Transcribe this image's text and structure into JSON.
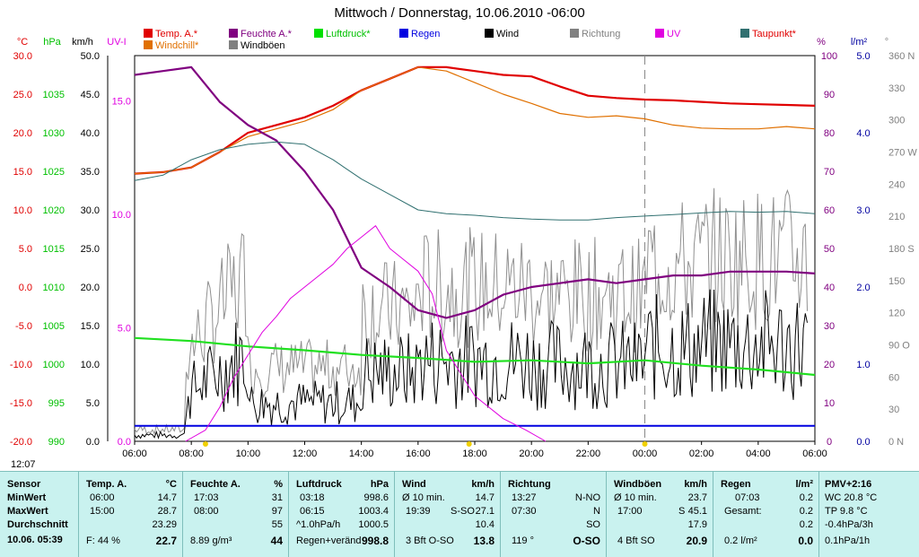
{
  "title": "Mittwoch / Donnerstag, 10.06.2010  -06:00",
  "legend": [
    {
      "label": "Temp. A.*",
      "color": "#e00000"
    },
    {
      "label": "Windchill*",
      "color": "#e07000"
    },
    {
      "label": "Feuchte A.*",
      "color": "#800080"
    },
    {
      "label": "Windböen",
      "color": "#808080"
    },
    {
      "label": "Luftdruck*",
      "color": "#00e000"
    },
    {
      "label": "Regen",
      "color": "#0000e0"
    },
    {
      "label": "Wind",
      "color": "#000000"
    },
    {
      "label": "Richtung",
      "color": "#808080"
    },
    {
      "label": "UV",
      "color": "#e000e0"
    },
    {
      "label": "Taupunkt*",
      "color": "#307070"
    }
  ],
  "axis_units": {
    "temp": "°C",
    "press": "hPa",
    "wind": "km/h",
    "uv": "UV-I",
    "hum": "%",
    "rain": "l/m²",
    "dir": "°"
  },
  "time_label": "12:07",
  "chart_data": {
    "type": "line",
    "x_ticks": [
      "06:00",
      "08:00",
      "10:00",
      "12:00",
      "14:00",
      "16:00",
      "18:00",
      "20:00",
      "22:00",
      "00:00",
      "02:00",
      "04:00",
      "06:00"
    ],
    "axes": {
      "temp_c": {
        "range": [
          -20,
          30
        ],
        "ticks": [
          "30.0",
          "25.0",
          "20.0",
          "15.0",
          "10.0",
          "5.0",
          "0.0",
          "-5.0",
          "-10.0",
          "-15.0",
          "-20.0"
        ]
      },
      "pressure_hpa": {
        "range": [
          990,
          1040
        ],
        "ticks": [
          "1035",
          "1030",
          "1025",
          "1020",
          "1015",
          "1010",
          "1005",
          "1000",
          "995",
          "990"
        ]
      },
      "wind_kmh": {
        "range": [
          0,
          50
        ],
        "ticks": [
          "50.0",
          "45.0",
          "40.0",
          "35.0",
          "30.0",
          "25.0",
          "20.0",
          "15.0",
          "10.0",
          "5.0",
          "0.0"
        ]
      },
      "uv_index": {
        "range": [
          0,
          17
        ],
        "ticks": [
          "15.0",
          "10.0",
          "5.0",
          "0.0"
        ]
      },
      "humidity_pct": {
        "range": [
          0,
          100
        ],
        "ticks": [
          "100",
          "90",
          "80",
          "70",
          "60",
          "50",
          "40",
          "30",
          "20",
          "10",
          "0"
        ]
      },
      "rain_lm2": {
        "range": [
          0,
          5
        ],
        "ticks": [
          "5.0",
          "4.0",
          "3.0",
          "2.0",
          "1.0",
          "0.0"
        ]
      },
      "direction_deg": {
        "range": [
          0,
          360
        ],
        "ticks": [
          "360 N",
          "330",
          "300",
          "270 W",
          "240",
          "210",
          "180 S",
          "150",
          "120",
          "90 O",
          "60",
          "30",
          "0 N"
        ]
      }
    },
    "series": [
      {
        "name": "Temp. A.*",
        "axis": "temp_c",
        "hours": [
          0,
          1,
          2,
          3,
          4,
          5,
          6,
          7,
          8,
          9,
          10,
          11,
          12,
          13,
          14,
          15,
          16,
          17,
          18,
          19,
          20,
          21,
          22,
          23,
          24
        ],
        "values": [
          14.7,
          14.9,
          15.5,
          17.5,
          20,
          21,
          22,
          23.5,
          25.5,
          27,
          28.5,
          28.5,
          28,
          27.5,
          27.3,
          26,
          24.8,
          24.5,
          24.3,
          24.2,
          24,
          23.8,
          23.7,
          23.6,
          23.5
        ]
      },
      {
        "name": "Windchill*",
        "axis": "temp_c",
        "hours": [
          0,
          1,
          2,
          3,
          4,
          5,
          6,
          7,
          8,
          9,
          10,
          11,
          12,
          13,
          14,
          15,
          16,
          17,
          18,
          19,
          20,
          21,
          22,
          23,
          24
        ],
        "values": [
          14.7,
          14.9,
          15.5,
          17.5,
          19.5,
          20.5,
          21.5,
          23,
          25.5,
          27,
          28.5,
          28,
          26.5,
          25,
          23.8,
          22.5,
          22,
          22.2,
          21.8,
          21,
          20.6,
          20.5,
          20.5,
          20.8,
          20.5
        ]
      },
      {
        "name": "Feuchte A.*",
        "axis": "humidity_pct",
        "hours": [
          0,
          1,
          2,
          3,
          4,
          5,
          6,
          7,
          8,
          9,
          10,
          11,
          12,
          13,
          14,
          15,
          16,
          17,
          18,
          19,
          20,
          21,
          22,
          23,
          24
        ],
        "values": [
          95,
          96,
          97,
          88,
          82,
          78,
          70,
          60,
          45,
          40,
          34,
          32,
          34,
          38,
          40,
          41,
          42,
          41,
          42,
          43,
          43,
          44,
          44,
          44,
          43.5
        ]
      },
      {
        "name": "Taupunkt*",
        "axis": "temp_c",
        "hours": [
          0,
          1,
          2,
          3,
          4,
          5,
          6,
          7,
          8,
          9,
          10,
          11,
          12,
          13,
          14,
          15,
          16,
          17,
          18,
          19,
          20,
          21,
          22,
          23,
          24
        ],
        "values": [
          13.8,
          14.5,
          16.5,
          17.8,
          18.5,
          18.8,
          18.5,
          16.5,
          14,
          12,
          10,
          9.5,
          9.3,
          9,
          8.8,
          8.7,
          8.7,
          9,
          9.2,
          9.4,
          9.6,
          9.8,
          9.7,
          9.8,
          9.5
        ]
      },
      {
        "name": "Luftdruck*",
        "axis": "pressure_hpa",
        "hours": [
          0,
          2,
          4,
          6,
          8,
          10,
          12,
          14,
          16,
          18,
          20,
          22,
          24
        ],
        "values": [
          1003.4,
          1003,
          1002.3,
          1001.8,
          1001.2,
          1000.8,
          1000.3,
          1000.5,
          1000.1,
          1000.5,
          999.8,
          999.3,
          998.6
        ]
      },
      {
        "name": "Regen",
        "axis": "rain_lm2",
        "hours": [
          0,
          24
        ],
        "values": [
          0.2,
          0.2
        ]
      },
      {
        "name": "UV",
        "axis": "uv_index",
        "hours": [
          1.8,
          2.5,
          3,
          3.5,
          4,
          4.5,
          5,
          5.5,
          6,
          6.5,
          7,
          7.5,
          8,
          8.5,
          9,
          9.5,
          10,
          10.5,
          11,
          11.5,
          12,
          13,
          13.8,
          14.5
        ],
        "values": [
          0,
          0.5,
          1.5,
          2.8,
          3.8,
          4.8,
          5.5,
          6.3,
          6.8,
          7.3,
          7.8,
          8.5,
          9,
          9.5,
          8.5,
          8,
          7.5,
          6.5,
          4,
          3,
          2,
          1,
          0.5,
          0
        ]
      }
    ],
    "wind_mean_kmh": 14.7,
    "gusts_max_kmh": 45.1
  },
  "table": {
    "sensor": {
      "head": "Sensor",
      "min": "MinWert",
      "max": "MaxWert",
      "avg": "Durchschnitt",
      "date": "10.06. 05:39"
    },
    "temp": {
      "head": "Temp. A.",
      "unit": "°C",
      "min_t": "06:00",
      "min_v": "14.7",
      "max_t": "15:00",
      "max_v": "28.7",
      "avg": "23.29",
      "extra": "F: 44 %",
      "cur": "22.7"
    },
    "hum": {
      "head": "Feuchte A.",
      "unit": "%",
      "min_t": "17:03",
      "min_v": "31",
      "max_t": "08:00",
      "max_v": "97",
      "avg": "55",
      "extra": "8.89 g/m³",
      "cur": "44"
    },
    "press": {
      "head": "Luftdruck",
      "unit": "hPa",
      "min_t": "03:18",
      "min_v": "998.6",
      "max_t": "06:15",
      "max_v": "1003.4",
      "avg_l": "^1.0hPa/h",
      "avg": "1000.5",
      "extra": "Regen+veränd",
      "cur": "998.8"
    },
    "wind": {
      "head": "Wind",
      "unit": "km/h",
      "min_t": "Ø 10 min.",
      "min_v": "14.7",
      "max_t": "19:39",
      "max_m": "S-SO",
      "max_v": "27.1",
      "avg": "10.4",
      "extra": "3 Bft O-SO",
      "cur": "13.8"
    },
    "dir": {
      "head": "Richtung",
      "min_t": "13:27",
      "min_v": "N-NO",
      "max_t": "07:30",
      "max_v": "N",
      "avg": "SO",
      "extra": "119 °",
      "cur": "O-SO"
    },
    "gust": {
      "head": "Windböen",
      "unit": "km/h",
      "min_t": "Ø 10 min.",
      "min_v": "23.7",
      "max_t": "17:00",
      "max_m": "S",
      "max_v": "45.1",
      "avg": "17.9",
      "extra": "4 Bft SO",
      "cur": "20.9"
    },
    "rain": {
      "head": "Regen",
      "unit": "l/m²",
      "min_t": "07:03",
      "min_v": "0.2",
      "max_t": "Gesamt:",
      "max_v": "0.2",
      "avg": "0.2",
      "extra": "0.2 l/m²",
      "cur": "0.0"
    },
    "pmv": {
      "head": "PMV+2:16",
      "l1": "WC 20.8 °C",
      "l2": "TP 9.8 °C",
      "l3": "-0.4hPa/3h",
      "l4": "0.1hPa/1h"
    }
  }
}
